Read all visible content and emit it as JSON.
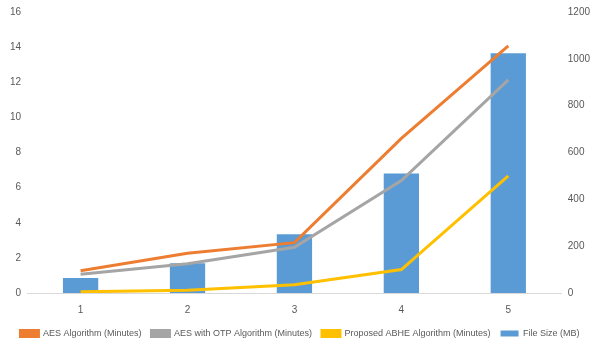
{
  "chart_data": {
    "type": "bar",
    "categories": [
      "1",
      "2",
      "3",
      "4",
      "5"
    ],
    "series": [
      {
        "name": "File Size (MB)",
        "type": "bar",
        "color": "#5b9bd5",
        "values": [
          0.85,
          1.7,
          3.35,
          6.8,
          13.65
        ]
      },
      {
        "name": "AES Algorithm (Minutes)",
        "type": "line",
        "axis": "y2",
        "color": "#ed7d31",
        "values": [
          95,
          170,
          215,
          660,
          1055
        ]
      },
      {
        "name": "AES with OTP Algorithm (Minutes)",
        "type": "line",
        "axis": "y2",
        "color": "#a5a5a5",
        "values": [
          80,
          125,
          195,
          480,
          910
        ]
      },
      {
        "name": "Proposed ABHE Algorithm (Minutes)",
        "type": "line",
        "axis": "y2",
        "color": "#ffc000",
        "values": [
          5,
          12,
          35,
          100,
          500
        ]
      }
    ],
    "ylim": [
      0,
      16
    ],
    "yticks": [
      0,
      2,
      4,
      6,
      8,
      10,
      12,
      14,
      16
    ],
    "y2lim": [
      0,
      1200
    ],
    "y2ticks": [
      0,
      200,
      400,
      600,
      800,
      1000,
      1200
    ],
    "grid": false,
    "legend": "bottom"
  }
}
